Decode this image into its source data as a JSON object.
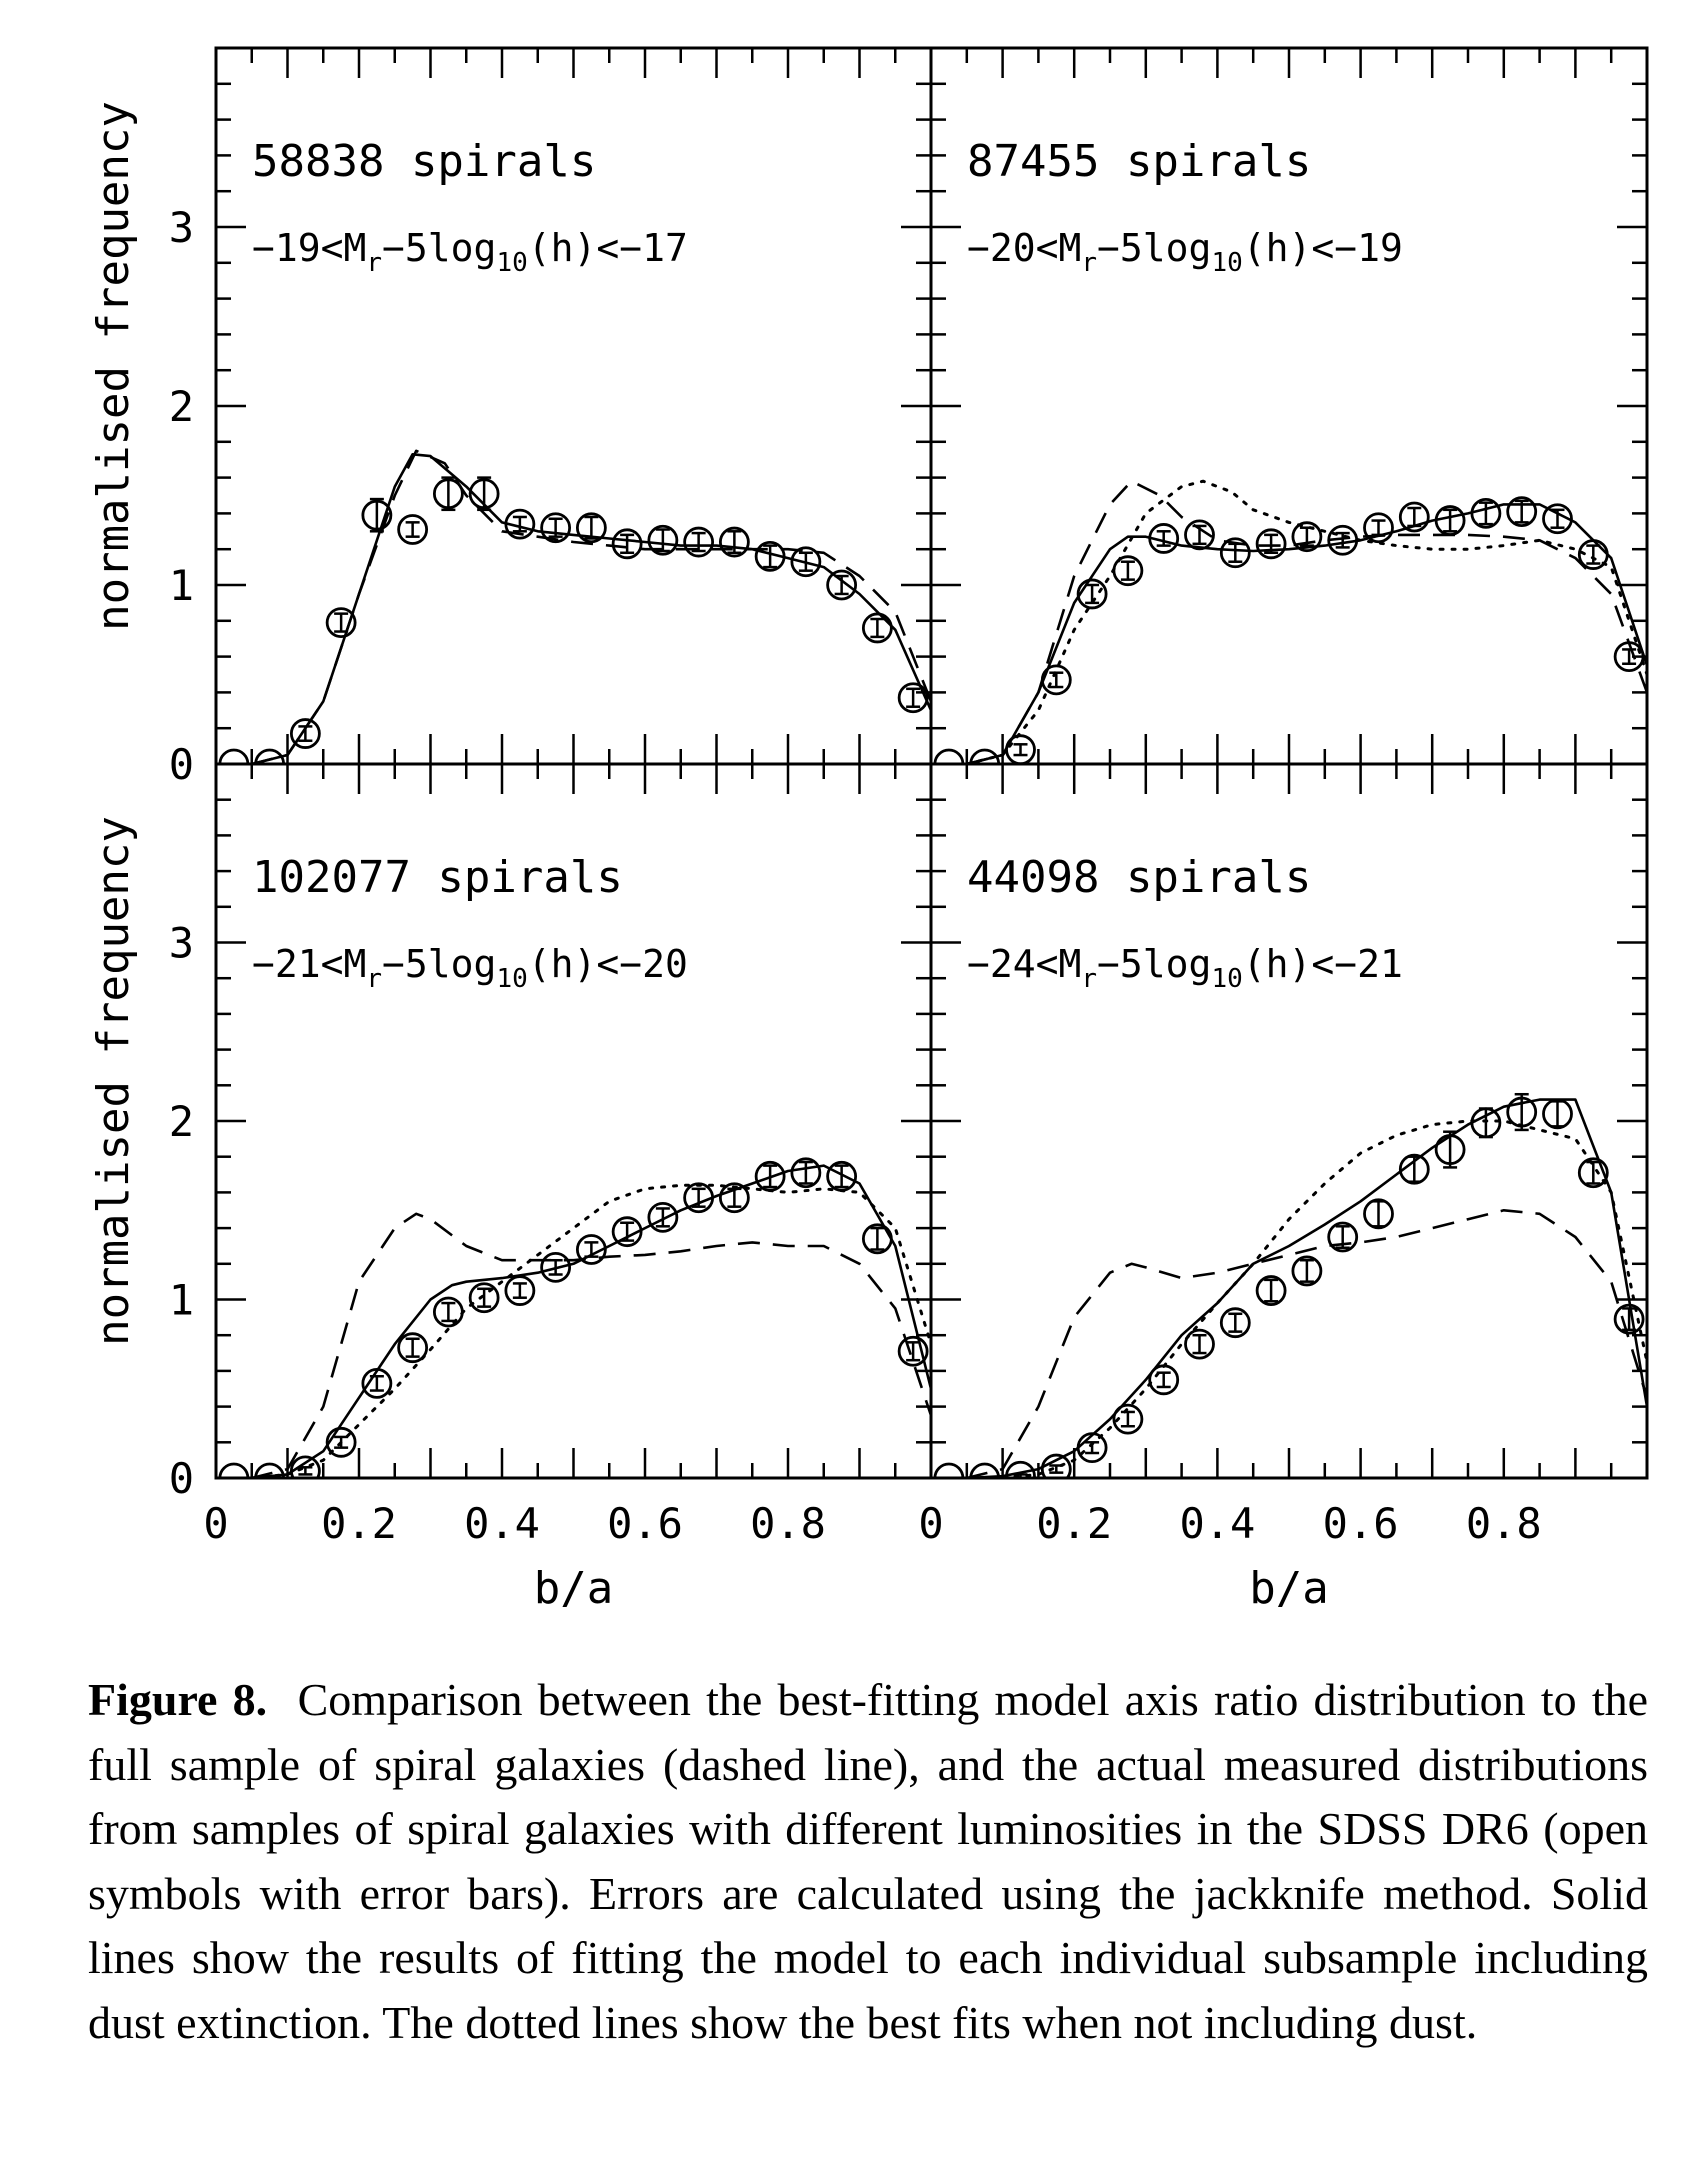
{
  "chart_data": [
    {
      "type": "line",
      "annotation_count": "58838 spirals",
      "annotation_range": "−19<M_r−5log_10(h)<−17",
      "xlim": [
        0,
        1
      ],
      "ylim": [
        0,
        4
      ],
      "x_ticks": [],
      "y_ticks": [
        "0",
        "1",
        "2",
        "3"
      ],
      "xlabel": "",
      "ylabel": "normalised frequency",
      "series": [
        {
          "style": "points-with-error-bars",
          "x": [
            0.025,
            0.075,
            0.125,
            0.175,
            0.225,
            0.275,
            0.325,
            0.375,
            0.425,
            0.475,
            0.525,
            0.575,
            0.625,
            0.675,
            0.725,
            0.775,
            0.825,
            0.875,
            0.925,
            0.975
          ],
          "y": [
            0.0,
            0.0,
            0.17,
            0.79,
            1.39,
            1.31,
            1.51,
            1.51,
            1.34,
            1.32,
            1.32,
            1.23,
            1.25,
            1.24,
            1.24,
            1.16,
            1.13,
            1.0,
            0.76,
            0.37
          ],
          "err": [
            0.0,
            0.0,
            0.04,
            0.05,
            0.09,
            0.04,
            0.09,
            0.09,
            0.04,
            0.05,
            0.06,
            0.05,
            0.06,
            0.05,
            0.06,
            0.06,
            0.05,
            0.05,
            0.05,
            0.05
          ]
        },
        {
          "style": "solid",
          "x": [
            0.0,
            0.05,
            0.1,
            0.15,
            0.2,
            0.25,
            0.275,
            0.3,
            0.35,
            0.4,
            0.45,
            0.5,
            0.55,
            0.6,
            0.65,
            0.7,
            0.75,
            0.8,
            0.85,
            0.9,
            0.95,
            1.0
          ],
          "y": [
            0.0,
            0.0,
            0.05,
            0.35,
            0.95,
            1.55,
            1.73,
            1.72,
            1.55,
            1.35,
            1.3,
            1.28,
            1.26,
            1.24,
            1.22,
            1.22,
            1.2,
            1.15,
            1.1,
            0.95,
            0.75,
            0.3
          ]
        },
        {
          "style": "dashed",
          "x": [
            0.0,
            0.05,
            0.1,
            0.15,
            0.2,
            0.25,
            0.28,
            0.32,
            0.35,
            0.4,
            0.45,
            0.5,
            0.55,
            0.6,
            0.65,
            0.7,
            0.75,
            0.8,
            0.85,
            0.9,
            0.95,
            1.0
          ],
          "y": [
            0.0,
            0.0,
            0.05,
            0.35,
            0.95,
            1.5,
            1.75,
            1.68,
            1.5,
            1.3,
            1.27,
            1.24,
            1.22,
            1.2,
            1.2,
            1.2,
            1.2,
            1.2,
            1.18,
            1.05,
            0.85,
            0.35
          ]
        }
      ]
    },
    {
      "type": "line",
      "annotation_count": "87455 spirals",
      "annotation_range": "−20<M_r−5log_10(h)<−19",
      "xlim": [
        0,
        1
      ],
      "ylim": [
        0,
        4
      ],
      "x_ticks": [],
      "y_ticks": [],
      "xlabel": "",
      "ylabel": "",
      "series": [
        {
          "style": "points-with-error-bars",
          "x": [
            0.025,
            0.075,
            0.125,
            0.175,
            0.225,
            0.275,
            0.325,
            0.375,
            0.425,
            0.475,
            0.525,
            0.575,
            0.625,
            0.675,
            0.725,
            0.775,
            0.825,
            0.875,
            0.925,
            0.975
          ],
          "y": [
            0.0,
            0.0,
            0.08,
            0.47,
            0.95,
            1.08,
            1.26,
            1.28,
            1.18,
            1.23,
            1.27,
            1.25,
            1.32,
            1.38,
            1.36,
            1.4,
            1.41,
            1.37,
            1.17,
            0.6
          ],
          "err": [
            0.0,
            0.0,
            0.03,
            0.04,
            0.05,
            0.05,
            0.04,
            0.05,
            0.05,
            0.05,
            0.05,
            0.04,
            0.04,
            0.05,
            0.06,
            0.06,
            0.06,
            0.05,
            0.05,
            0.04
          ]
        },
        {
          "style": "solid",
          "x": [
            0.0,
            0.05,
            0.1,
            0.15,
            0.2,
            0.25,
            0.275,
            0.3,
            0.35,
            0.4,
            0.45,
            0.5,
            0.55,
            0.6,
            0.65,
            0.7,
            0.75,
            0.8,
            0.85,
            0.9,
            0.95,
            1.0
          ],
          "y": [
            0.0,
            0.0,
            0.05,
            0.4,
            0.9,
            1.2,
            1.27,
            1.27,
            1.22,
            1.2,
            1.19,
            1.2,
            1.22,
            1.25,
            1.3,
            1.36,
            1.4,
            1.45,
            1.45,
            1.35,
            1.15,
            0.55
          ]
        },
        {
          "style": "dashed",
          "x": [
            0.0,
            0.05,
            0.1,
            0.15,
            0.2,
            0.25,
            0.28,
            0.32,
            0.35,
            0.4,
            0.45,
            0.5,
            0.55,
            0.6,
            0.65,
            0.7,
            0.75,
            0.8,
            0.85,
            0.9,
            0.95,
            1.0
          ],
          "y": [
            0.0,
            0.0,
            0.05,
            0.4,
            1.05,
            1.45,
            1.58,
            1.5,
            1.38,
            1.25,
            1.22,
            1.22,
            1.25,
            1.27,
            1.28,
            1.28,
            1.28,
            1.27,
            1.25,
            1.15,
            0.95,
            0.4
          ]
        },
        {
          "style": "dotted",
          "x": [
            0.0,
            0.05,
            0.1,
            0.15,
            0.2,
            0.25,
            0.3,
            0.35,
            0.38,
            0.42,
            0.45,
            0.5,
            0.55,
            0.6,
            0.65,
            0.7,
            0.75,
            0.8,
            0.85,
            0.9,
            0.95,
            1.0
          ],
          "y": [
            0.0,
            0.0,
            0.05,
            0.3,
            0.75,
            1.05,
            1.4,
            1.55,
            1.58,
            1.52,
            1.42,
            1.35,
            1.3,
            1.25,
            1.22,
            1.2,
            1.2,
            1.22,
            1.25,
            1.2,
            1.1,
            0.5
          ]
        }
      ]
    },
    {
      "type": "line",
      "annotation_count": "102077 spirals",
      "annotation_range": "−21<M_r−5log_10(h)<−20",
      "xlim": [
        0,
        1
      ],
      "ylim": [
        0,
        4
      ],
      "x_ticks": [
        "0",
        "0.2",
        "0.4",
        "0.6",
        "0.8"
      ],
      "y_ticks": [
        "0",
        "1",
        "2",
        "3"
      ],
      "xlabel": "b/a",
      "ylabel": "normalised frequency",
      "series": [
        {
          "style": "points-with-error-bars",
          "x": [
            0.025,
            0.075,
            0.125,
            0.175,
            0.225,
            0.275,
            0.325,
            0.375,
            0.425,
            0.475,
            0.525,
            0.575,
            0.625,
            0.675,
            0.725,
            0.775,
            0.825,
            0.875,
            0.925,
            0.975
          ],
          "y": [
            0.0,
            0.0,
            0.04,
            0.2,
            0.53,
            0.73,
            0.93,
            1.01,
            1.05,
            1.18,
            1.28,
            1.38,
            1.46,
            1.57,
            1.57,
            1.69,
            1.71,
            1.69,
            1.34,
            0.71
          ],
          "err": [
            0.0,
            0.0,
            0.02,
            0.03,
            0.04,
            0.05,
            0.05,
            0.05,
            0.04,
            0.04,
            0.04,
            0.05,
            0.05,
            0.05,
            0.05,
            0.06,
            0.06,
            0.06,
            0.06,
            0.05
          ]
        },
        {
          "style": "solid",
          "x": [
            0.0,
            0.05,
            0.1,
            0.15,
            0.2,
            0.25,
            0.3,
            0.33,
            0.35,
            0.4,
            0.45,
            0.5,
            0.55,
            0.6,
            0.65,
            0.7,
            0.75,
            0.8,
            0.85,
            0.9,
            0.95,
            1.0
          ],
          "y": [
            0.0,
            0.0,
            0.02,
            0.15,
            0.45,
            0.75,
            1.0,
            1.08,
            1.1,
            1.12,
            1.15,
            1.2,
            1.3,
            1.4,
            1.5,
            1.58,
            1.65,
            1.72,
            1.75,
            1.65,
            1.3,
            0.5
          ]
        },
        {
          "style": "dashed",
          "x": [
            0.0,
            0.05,
            0.1,
            0.15,
            0.2,
            0.25,
            0.28,
            0.3,
            0.35,
            0.4,
            0.45,
            0.5,
            0.55,
            0.6,
            0.65,
            0.7,
            0.75,
            0.8,
            0.85,
            0.9,
            0.95,
            1.0
          ],
          "y": [
            0.0,
            0.0,
            0.05,
            0.4,
            1.1,
            1.4,
            1.48,
            1.45,
            1.3,
            1.22,
            1.22,
            1.22,
            1.24,
            1.25,
            1.27,
            1.3,
            1.32,
            1.3,
            1.3,
            1.2,
            0.95,
            0.35
          ]
        },
        {
          "style": "dotted",
          "x": [
            0.0,
            0.05,
            0.1,
            0.15,
            0.2,
            0.25,
            0.3,
            0.35,
            0.4,
            0.45,
            0.5,
            0.55,
            0.6,
            0.65,
            0.7,
            0.75,
            0.8,
            0.85,
            0.9,
            0.95,
            1.0
          ],
          "y": [
            0.0,
            0.0,
            0.02,
            0.1,
            0.3,
            0.5,
            0.72,
            0.95,
            1.1,
            1.25,
            1.4,
            1.55,
            1.62,
            1.64,
            1.64,
            1.62,
            1.6,
            1.62,
            1.6,
            1.4,
            0.75
          ]
        }
      ]
    },
    {
      "type": "line",
      "annotation_count": "44098 spirals",
      "annotation_range": "−24<M_r−5log_10(h)<−21",
      "xlim": [
        0,
        1
      ],
      "ylim": [
        0,
        4
      ],
      "x_ticks": [
        "0",
        "0.2",
        "0.4",
        "0.6",
        "0.8"
      ],
      "y_ticks": [],
      "xlabel": "b/a",
      "ylabel": "",
      "series": [
        {
          "style": "points-with-error-bars",
          "x": [
            0.025,
            0.075,
            0.125,
            0.175,
            0.225,
            0.275,
            0.325,
            0.375,
            0.425,
            0.475,
            0.525,
            0.575,
            0.625,
            0.675,
            0.725,
            0.775,
            0.825,
            0.875,
            0.925,
            0.975
          ],
          "y": [
            0.0,
            0.0,
            0.01,
            0.05,
            0.17,
            0.33,
            0.55,
            0.75,
            0.87,
            1.05,
            1.16,
            1.35,
            1.48,
            1.73,
            1.84,
            1.99,
            2.05,
            2.04,
            1.71,
            0.89
          ],
          "err": [
            0.0,
            0.0,
            0.01,
            0.02,
            0.03,
            0.04,
            0.04,
            0.05,
            0.05,
            0.06,
            0.06,
            0.06,
            0.07,
            0.07,
            0.1,
            0.08,
            0.1,
            0.07,
            0.06,
            0.06
          ]
        },
        {
          "style": "solid",
          "x": [
            0.0,
            0.05,
            0.1,
            0.15,
            0.2,
            0.25,
            0.3,
            0.35,
            0.4,
            0.45,
            0.5,
            0.55,
            0.6,
            0.65,
            0.7,
            0.75,
            0.8,
            0.85,
            0.9,
            0.95,
            1.0
          ],
          "y": [
            0.0,
            0.0,
            0.01,
            0.05,
            0.15,
            0.33,
            0.55,
            0.8,
            0.98,
            1.2,
            1.3,
            1.42,
            1.55,
            1.7,
            1.85,
            1.98,
            2.08,
            2.12,
            2.12,
            1.6,
            0.4
          ]
        },
        {
          "style": "dashed",
          "x": [
            0.0,
            0.05,
            0.1,
            0.15,
            0.2,
            0.25,
            0.28,
            0.3,
            0.35,
            0.4,
            0.45,
            0.5,
            0.55,
            0.6,
            0.65,
            0.7,
            0.75,
            0.8,
            0.85,
            0.9,
            0.95,
            1.0
          ],
          "y": [
            0.0,
            0.0,
            0.05,
            0.4,
            0.9,
            1.15,
            1.2,
            1.18,
            1.12,
            1.15,
            1.2,
            1.25,
            1.3,
            1.32,
            1.35,
            1.4,
            1.45,
            1.5,
            1.48,
            1.35,
            1.1,
            0.45
          ]
        },
        {
          "style": "dotted",
          "x": [
            0.0,
            0.05,
            0.1,
            0.15,
            0.2,
            0.25,
            0.3,
            0.35,
            0.4,
            0.45,
            0.5,
            0.55,
            0.6,
            0.65,
            0.7,
            0.75,
            0.8,
            0.85,
            0.9,
            0.95,
            1.0
          ],
          "y": [
            0.0,
            0.0,
            0.0,
            0.02,
            0.1,
            0.28,
            0.5,
            0.75,
            0.98,
            1.2,
            1.45,
            1.65,
            1.82,
            1.92,
            1.98,
            2.0,
            2.0,
            1.95,
            1.9,
            1.6,
            0.65
          ]
        }
      ]
    }
  ],
  "caption": {
    "label": "Figure 8.",
    "text": "Comparison between the best-fitting model axis ratio distribution to the full sample of spiral galaxies (dashed line), and the actual measured distributions from samples of spiral galaxies with different luminosities in the SDSS DR6 (open symbols with error bars). Errors are calculated using the jackknife method. Solid lines show the results of fitting the model to each individual subsample including dust extinction. The dotted lines show the best fits when not including dust."
  }
}
